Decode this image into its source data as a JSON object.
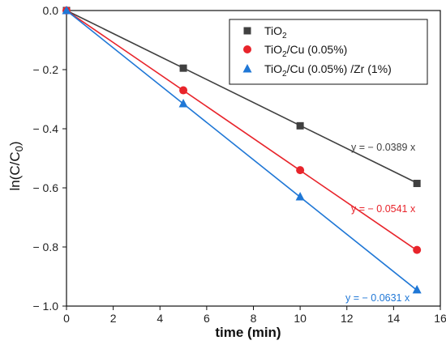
{
  "chart_data": {
    "type": "scatter",
    "xlabel": "time (min)",
    "ylabel": "ln(C/C0)",
    "xlim": [
      0,
      16
    ],
    "ylim": [
      -1.0,
      0.0
    ],
    "x_ticks": [
      0,
      2,
      4,
      6,
      8,
      10,
      12,
      14,
      16
    ],
    "y_ticks": [
      0.0,
      -0.2,
      -0.4,
      -0.6,
      -0.8,
      -1.0
    ],
    "y_tick_labels": [
      "0.0",
      "− 0.2",
      "− 0.4",
      "− 0.6",
      "− 0.8",
      "− 1.0"
    ],
    "grid": false,
    "legend_position": "top-right",
    "series": [
      {
        "name": "TiO2",
        "color": "#404040",
        "marker": "square",
        "x": [
          0,
          5,
          10,
          15
        ],
        "y": [
          0.0,
          -0.195,
          -0.39,
          -0.585
        ],
        "fit_slope": -0.0389,
        "fit_label": "y = − 0.0389 x"
      },
      {
        "name": "TiO2/Cu (0.05%)",
        "color": "#e8242b",
        "marker": "circle",
        "x": [
          0,
          5,
          10,
          15
        ],
        "y": [
          0.0,
          -0.27,
          -0.54,
          -0.81
        ],
        "fit_slope": -0.0541,
        "fit_label": "y = − 0.0541 x"
      },
      {
        "name": "TiO2/Cu (0.05%) /Zr (1%)",
        "color": "#1f77d6",
        "marker": "triangle",
        "x": [
          0,
          5,
          10,
          15
        ],
        "y": [
          0.0,
          -0.315,
          -0.63,
          -0.945
        ],
        "fit_slope": -0.0631,
        "fit_label": "y = − 0.0631 x"
      }
    ]
  }
}
